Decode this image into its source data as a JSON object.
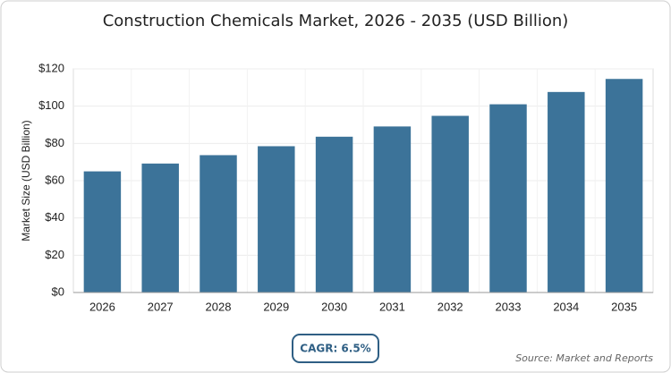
{
  "chart_data": {
    "type": "bar",
    "title": "Construction Chemicals Market, 2026 - 2035 (USD Billion)",
    "y_label": "Market Size (USD Billion)",
    "categories": [
      "2026",
      "2027",
      "2028",
      "2029",
      "2030",
      "2031",
      "2032",
      "2033",
      "2034",
      "2035"
    ],
    "values": [
      65,
      69.2,
      73.7,
      78.5,
      83.6,
      89.1,
      94.8,
      101,
      107.6,
      114.6
    ],
    "color": "#3c7399",
    "ylim": [
      0,
      120
    ],
    "yticks": [
      {
        "value": 0,
        "label": "$0"
      },
      {
        "value": 20,
        "label": "$20"
      },
      {
        "value": 40,
        "label": "$40"
      },
      {
        "value": 60,
        "label": "$60"
      },
      {
        "value": 80,
        "label": "$80"
      },
      {
        "value": 100,
        "label": "$100"
      },
      {
        "value": 120,
        "label": "$120"
      }
    ],
    "grid": true,
    "annotation": "CAGR: 6.5%",
    "source": "Source: Market and Reports"
  }
}
